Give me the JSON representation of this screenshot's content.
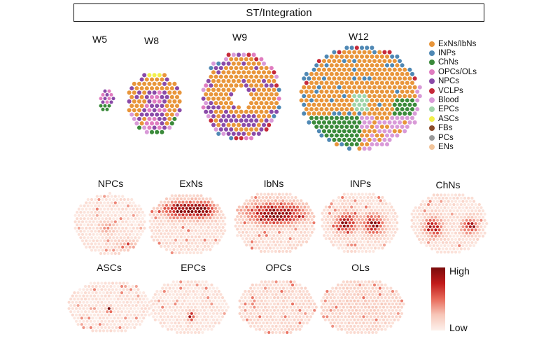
{
  "header": {
    "title": "ST/Integration"
  },
  "stages": [
    {
      "id": "w5",
      "label": "W5"
    },
    {
      "id": "w8",
      "label": "W8"
    },
    {
      "id": "w9",
      "label": "W9"
    },
    {
      "id": "w12",
      "label": "W12"
    }
  ],
  "legend": [
    {
      "label": "ExNs/IbNs",
      "color": "#e8953a"
    },
    {
      "label": "INPs",
      "color": "#4f88b4"
    },
    {
      "label": "ChNs",
      "color": "#3a8a3a"
    },
    {
      "label": "OPCs/OLs",
      "color": "#e07cc0"
    },
    {
      "label": "NPCs",
      "color": "#8a4aa8"
    },
    {
      "label": "VCLPs",
      "color": "#c62a3a"
    },
    {
      "label": "Blood",
      "color": "#d99ad8"
    },
    {
      "label": "EPCs",
      "color": "#9fd4a8"
    },
    {
      "label": "ASCs",
      "color": "#f2ef4a"
    },
    {
      "label": "FBs",
      "color": "#8a4a28"
    },
    {
      "label": "PCs",
      "color": "#999999"
    },
    {
      "label": "ENs",
      "color": "#f2c49a"
    }
  ],
  "heatmaps": [
    {
      "label": "NPCs"
    },
    {
      "label": "ExNs"
    },
    {
      "label": "IbNs"
    },
    {
      "label": "INPs"
    },
    {
      "label": "ChNs"
    },
    {
      "label": "ASCs"
    },
    {
      "label": "EPCs"
    },
    {
      "label": "OPCs"
    },
    {
      "label": "OLs"
    }
  ],
  "colorbar": {
    "high": "High",
    "low": "Low",
    "high_color": "#7a0b0b",
    "low_color": "#fdf1ec"
  }
}
